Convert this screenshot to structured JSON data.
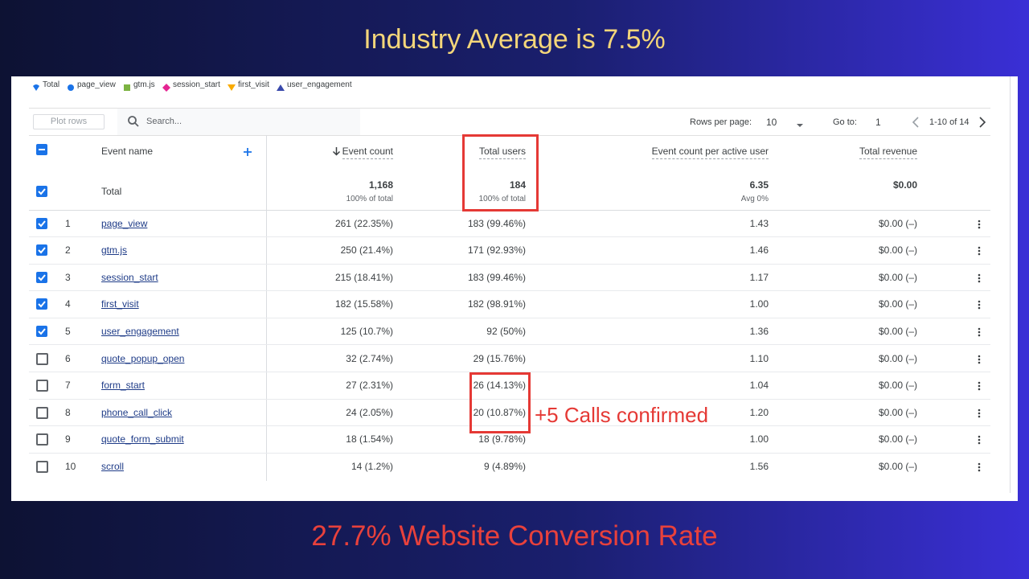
{
  "headline": "Industry Average is 7.5%",
  "footer": "27.7% Website Conversion Rate",
  "annotation": "+5 Calls confirmed",
  "legend": [
    {
      "label": "Total",
      "color": "#1a73e8",
      "shape": "pin"
    },
    {
      "label": "page_view",
      "color": "#1a73e8",
      "shape": "circle"
    },
    {
      "label": "gtm.js",
      "color": "#7cb342",
      "shape": "square"
    },
    {
      "label": "session_start",
      "color": "#e52592",
      "shape": "diamond"
    },
    {
      "label": "first_visit",
      "color": "#f9ab00",
      "shape": "triangle-down"
    },
    {
      "label": "user_engagement",
      "color": "#3949ab",
      "shape": "triangle-up"
    }
  ],
  "toolbar": {
    "plot_rows": "Plot rows",
    "search": "Search...",
    "rows_per_page_label": "Rows per page:",
    "rows_per_page": "10",
    "go_to_label": "Go to:",
    "go_to": "1",
    "range": "1-10 of 14"
  },
  "table": {
    "columns": [
      "Event name",
      "Event count",
      "Total users",
      "Event count per active user",
      "Total revenue"
    ],
    "total": {
      "label": "Total",
      "values": [
        "1,168",
        "184",
        "6.35",
        "$0.00"
      ],
      "subs": [
        "100% of total",
        "100% of total",
        "Avg 0%"
      ],
      "checked": true
    },
    "rows": [
      {
        "index": 1,
        "name": "page_view",
        "event_count": "261 (22.35%)",
        "total_users": "183 (99.46%)",
        "per_user": "1.43",
        "revenue": "$0.00 (–)",
        "checked": true
      },
      {
        "index": 2,
        "name": "gtm.js",
        "event_count": "250 (21.4%)",
        "total_users": "171 (92.93%)",
        "per_user": "1.46",
        "revenue": "$0.00 (–)",
        "checked": true
      },
      {
        "index": 3,
        "name": "session_start",
        "event_count": "215 (18.41%)",
        "total_users": "183 (99.46%)",
        "per_user": "1.17",
        "revenue": "$0.00 (–)",
        "checked": true
      },
      {
        "index": 4,
        "name": "first_visit",
        "event_count": "182 (15.58%)",
        "total_users": "182 (98.91%)",
        "per_user": "1.00",
        "revenue": "$0.00 (–)",
        "checked": true
      },
      {
        "index": 5,
        "name": "user_engagement",
        "event_count": "125 (10.7%)",
        "total_users": "92 (50%)",
        "per_user": "1.36",
        "revenue": "$0.00 (–)",
        "checked": true
      },
      {
        "index": 6,
        "name": "quote_popup_open",
        "event_count": "32 (2.74%)",
        "total_users": "29 (15.76%)",
        "per_user": "1.10",
        "revenue": "$0.00 (–)",
        "checked": false
      },
      {
        "index": 7,
        "name": "form_start",
        "event_count": "27 (2.31%)",
        "total_users": "26 (14.13%)",
        "per_user": "1.04",
        "revenue": "$0.00 (–)",
        "checked": false
      },
      {
        "index": 8,
        "name": "phone_call_click",
        "event_count": "24 (2.05%)",
        "total_users": "20 (10.87%)",
        "per_user": "1.20",
        "revenue": "$0.00 (–)",
        "checked": false
      },
      {
        "index": 9,
        "name": "quote_form_submit",
        "event_count": "18 (1.54%)",
        "total_users": "18 (9.78%)",
        "per_user": "1.00",
        "revenue": "$0.00 (–)",
        "checked": false
      },
      {
        "index": 10,
        "name": "scroll",
        "event_count": "14 (1.2%)",
        "total_users": "9 (4.89%)",
        "per_user": "1.56",
        "revenue": "$0.00 (–)",
        "checked": false
      }
    ]
  }
}
